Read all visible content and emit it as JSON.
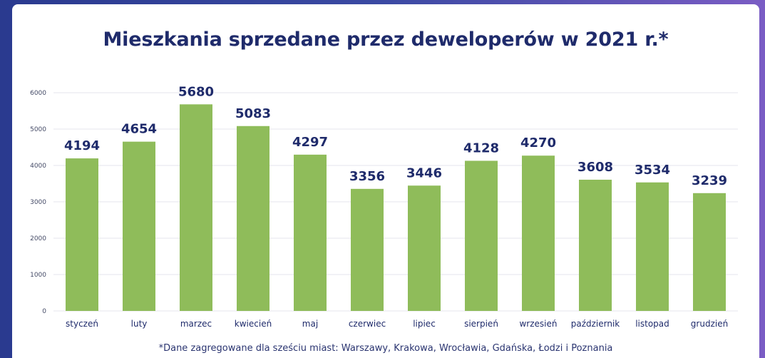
{
  "chart_data": {
    "type": "bar",
    "title": "Mieszkania sprzedane przez deweloperów w 2021 r.*",
    "footnote": "*Dane zagregowane dla sześciu miast: Warszawy, Krakowa, Wrocławia, Gdańska, Łodzi i Poznania",
    "categories": [
      "styczeń",
      "luty",
      "marzec",
      "kwiecień",
      "maj",
      "czerwiec",
      "lipiec",
      "sierpień",
      "wrzesień",
      "październik",
      "listopad",
      "grudzień"
    ],
    "values": [
      4194,
      4654,
      5680,
      5083,
      4297,
      3356,
      3446,
      4128,
      4270,
      3608,
      3534,
      3239
    ],
    "ylim": [
      0,
      6000
    ],
    "yticks": [
      0,
      1000,
      2000,
      3000,
      4000,
      5000,
      6000
    ],
    "xlabel": "",
    "ylabel": "",
    "grid": true,
    "colors": {
      "bar": "#8fbc5a",
      "text": "#1f2b6b",
      "grid": "#e6e6ee"
    }
  }
}
